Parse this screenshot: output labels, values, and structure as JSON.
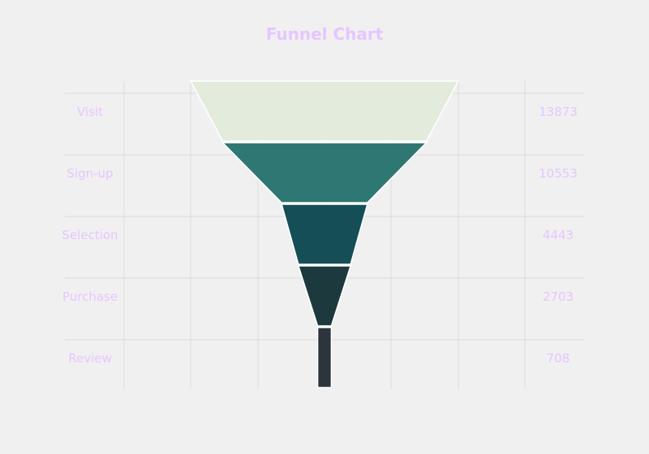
{
  "chart_data": {
    "type": "funnel",
    "title": "Funnel Chart",
    "stages": [
      "Visit",
      "Sign-up",
      "Selection",
      "Purchase",
      "Review"
    ],
    "values": [
      13873,
      10553,
      4443,
      2703,
      708
    ],
    "colors": [
      "#e3ebdc",
      "#2f7772",
      "#154e56",
      "#1c3a3e",
      "#2c353c"
    ],
    "grid": true
  }
}
